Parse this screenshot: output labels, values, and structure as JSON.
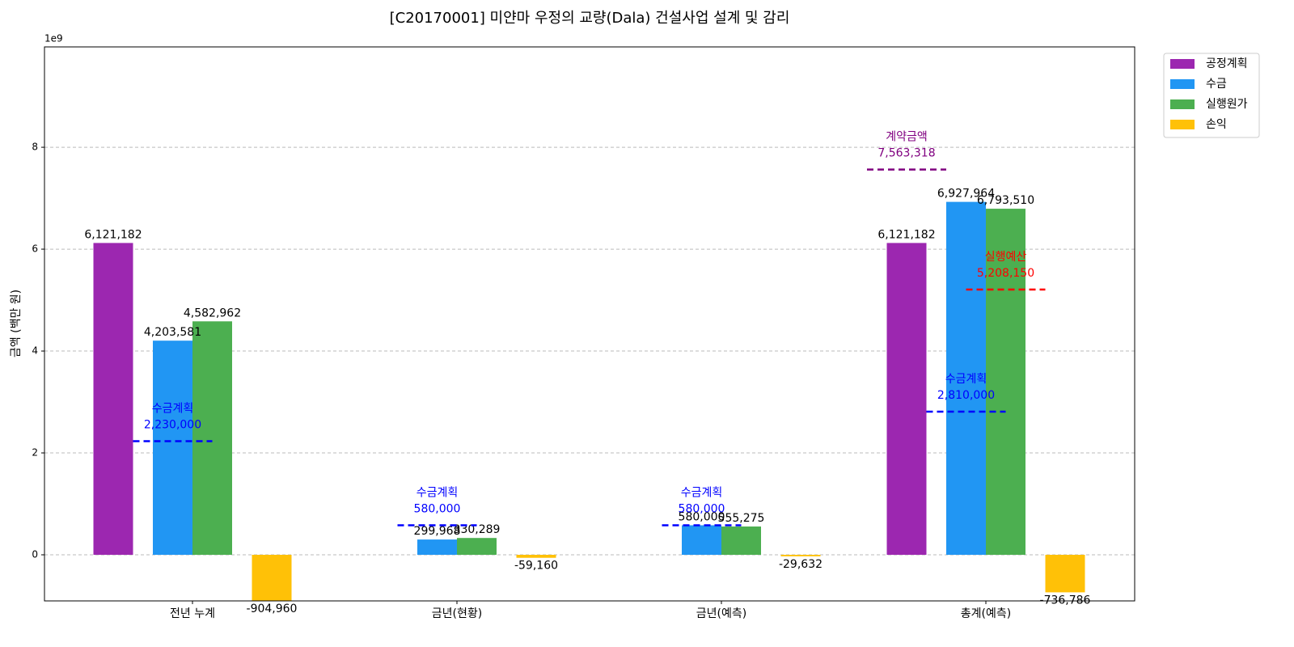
{
  "chart_data": {
    "type": "bar",
    "title": "[C20170001] 미얀마 우정의 교량(Dala) 건설사업 설계 및 감리",
    "ylabel": "금액 (백만 원)",
    "y_offset_label": "1e9",
    "categories": [
      "전년 누계",
      "금년(현황)",
      "금년(예측)",
      "총계(예측)"
    ],
    "series": [
      {
        "name": "공정계획",
        "color": "#9c27b0",
        "values": [
          6121182000,
          null,
          null,
          6121182000
        ],
        "value_labels": [
          "6,121,182",
          null,
          null,
          "6,121,182"
        ]
      },
      {
        "name": "수금",
        "color": "#2196f3",
        "values": [
          4203581000,
          299968000,
          580000000,
          6927964000
        ],
        "value_labels": [
          "4,203,581",
          "299,968",
          "580,000",
          "6,927,964"
        ]
      },
      {
        "name": "실행원가",
        "color": "#4caf50",
        "values": [
          4582962000,
          330289000,
          555275000,
          6793510000
        ],
        "value_labels": [
          "4,582,962",
          "330,289",
          "555,275",
          "6,793,510"
        ]
      },
      {
        "name": "손익",
        "color": "#ffc107",
        "values": [
          -904960000,
          -59160000,
          -29632000,
          -736786000
        ],
        "value_labels": [
          "-904,960",
          "-59,160",
          "-29,632",
          "-736,786"
        ]
      }
    ],
    "reference_lines": [
      {
        "name": "수금계획",
        "color": "#0000ff",
        "values": [
          2230000000,
          580000000,
          580000000,
          2810000000
        ],
        "value_labels": [
          "2,230,000",
          "580,000",
          "580,000",
          "2,810,000"
        ]
      },
      {
        "name": "계약금액",
        "color": "#800080",
        "values": [
          null,
          null,
          null,
          7563318000
        ],
        "value_labels": [
          null,
          null,
          null,
          "7,563,318"
        ]
      },
      {
        "name": "실행예산",
        "color": "#ff0000",
        "values": [
          null,
          null,
          null,
          5208150000
        ],
        "value_labels": [
          null,
          null,
          null,
          "5,208,150"
        ]
      }
    ],
    "ylim": [
      -905000000,
      9970000000
    ],
    "yticks": [
      {
        "value": 0,
        "label": "0"
      },
      {
        "value": 2000000000,
        "label": "2"
      },
      {
        "value": 4000000000,
        "label": "4"
      },
      {
        "value": 6000000000,
        "label": "6"
      },
      {
        "value": 8000000000,
        "label": "8"
      }
    ],
    "grid": true,
    "legend": "upper right outside"
  }
}
